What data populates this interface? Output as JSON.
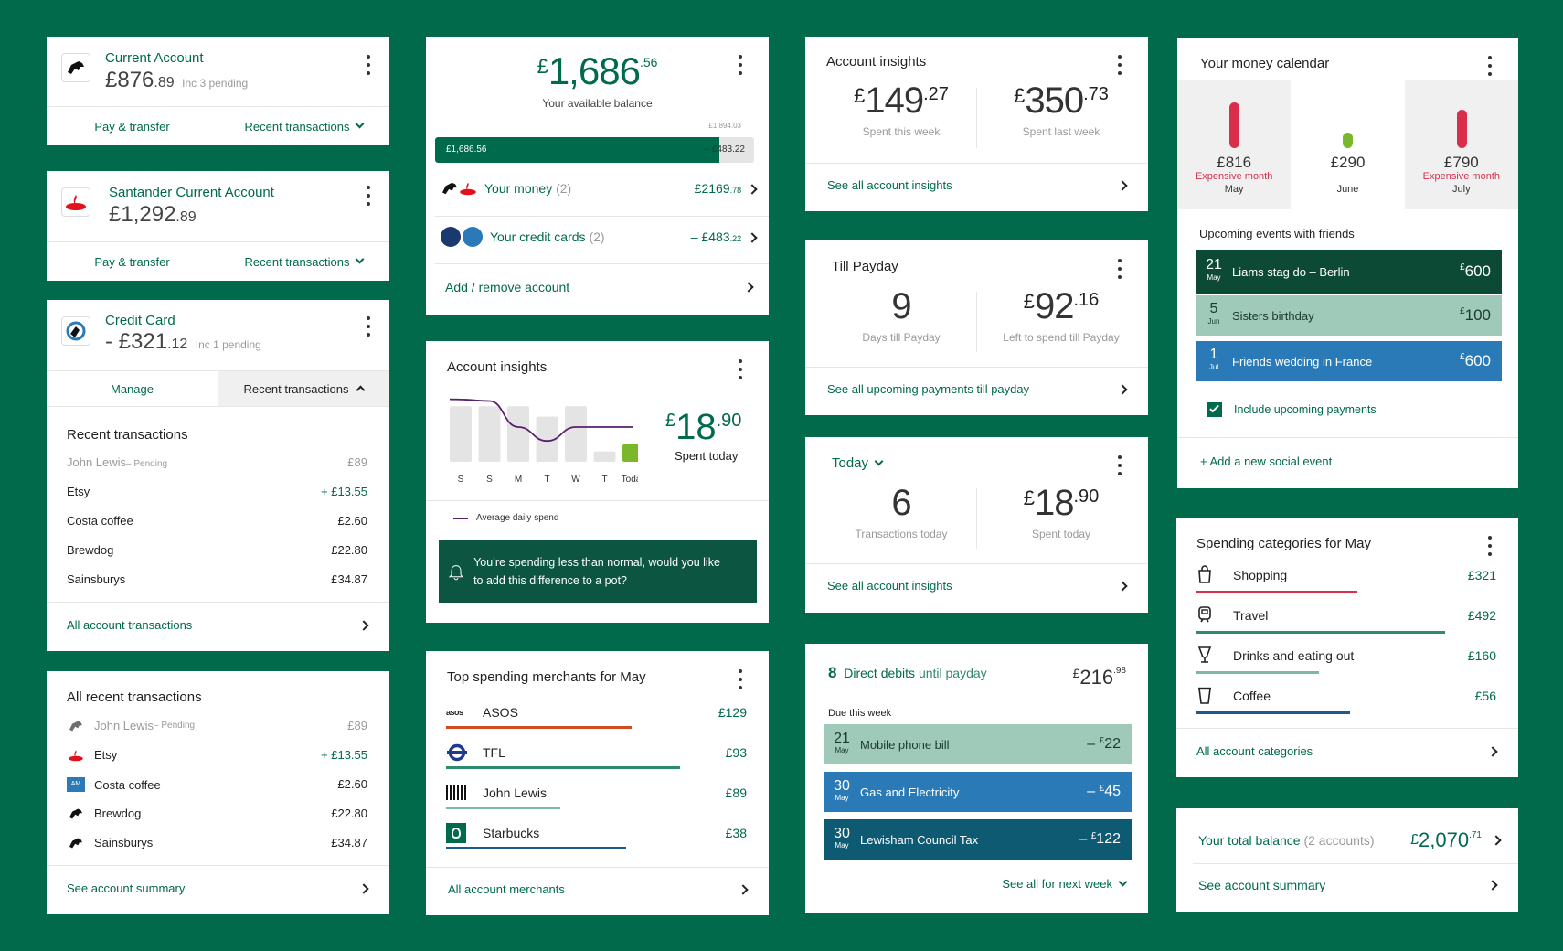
{
  "colors": {
    "bg": "#016a4a",
    "green": "#006a4d",
    "red": "#d92e4c",
    "lightgreen": "#7ab82b"
  },
  "current": {
    "title": "Current Account",
    "cur": "£",
    "amount": "876",
    "pence": ".89",
    "pending": "Inc 3 pending",
    "btn1": "Pay & transfer",
    "btn2": "Recent transactions"
  },
  "santander": {
    "title": "Santander Current Account",
    "cur": "£",
    "amount": "1,292",
    "pence": ".89",
    "btn1": "Pay & transfer",
    "btn2": "Recent transactions"
  },
  "credit": {
    "title": "Credit Card",
    "cur": "- £",
    "amount": "321",
    "pence": ".12",
    "pending": "Inc 1 pending",
    "btn1": "Manage",
    "btn2": "Recent transactions",
    "heading": "Recent transactions",
    "pending_row": {
      "name": "John Lewis",
      "tag": "– Pending",
      "amount": "£89"
    },
    "rows": [
      {
        "name": "Etsy",
        "amount": "+ £13.55"
      },
      {
        "name": "Costa coffee",
        "amount": "£2.60"
      },
      {
        "name": "Brewdog",
        "amount": "£22.80"
      },
      {
        "name": "Sainsburys",
        "amount": "£34.87"
      }
    ],
    "link": "All account transactions"
  },
  "allrecent": {
    "heading": "All recent transactions",
    "pending_row": {
      "name": "John Lewis",
      "tag": "– Pending",
      "amount": "£89"
    },
    "rows": [
      {
        "name": "Etsy",
        "amount": "+ £13.55"
      },
      {
        "name": "Costa coffee",
        "amount": "£2.60"
      },
      {
        "name": "Brewdog",
        "amount": "£22.80"
      },
      {
        "name": "Sainsburys",
        "amount": "£34.87"
      }
    ],
    "link": "See account summary"
  },
  "balance": {
    "cur": "£",
    "amount": "1,686",
    "pence": ".56",
    "label": "Your available balance",
    "limit": "£1,894.03",
    "bar_left": "£1,686.56",
    "bar_right": "– £483.22",
    "bar_fill": 0.89,
    "money_label": "Your money",
    "money_count": "(2)",
    "money_amount": "£2169",
    "money_pence": ".78",
    "cards_label": "Your credit cards",
    "cards_count": "(2)",
    "cards_amount": "– £483",
    "cards_pence": ".22",
    "add": "Add / remove account"
  },
  "insights_chart": {
    "title": "Account insights",
    "cur": "£",
    "amount": "18",
    "pence": ".90",
    "sub": "Spent today",
    "legend": "Average daily spend",
    "alert": "You’re spending less than normal, would you like to add this difference to a pot?"
  },
  "chart_data": {
    "type": "bar",
    "title": "Account insights",
    "categories": [
      "S",
      "S",
      "M",
      "T",
      "W",
      "T",
      "Today"
    ],
    "values": [
      32,
      32,
      32,
      26,
      32,
      6,
      10
    ],
    "ylim": [
      0,
      40
    ],
    "series": [
      {
        "name": "Average daily spend",
        "type": "line",
        "values": [
          36,
          35,
          20,
          12,
          20,
          20,
          20
        ]
      }
    ]
  },
  "merchants": {
    "title": "Top spending merchants for May",
    "rows": [
      {
        "name": "ASOS",
        "logo": "asos",
        "amount": "£129",
        "fill": 0.62,
        "color": "#d24a1f"
      },
      {
        "name": "TFL",
        "logo": "",
        "amount": "£93",
        "fill": 0.78,
        "color": "#2c8c6e"
      },
      {
        "name": "John Lewis",
        "logo": "",
        "amount": "£89",
        "fill": 0.38,
        "color": "#7ab8a4"
      },
      {
        "name": "Starbucks",
        "logo": "",
        "amount": "£38",
        "fill": 0.6,
        "color": "#1d5a8c"
      }
    ],
    "link": "All account merchants"
  },
  "insights_week": {
    "title": "Account insights",
    "a_cur": "£",
    "a_amount": "149",
    "a_pence": ".27",
    "a_label": "Spent this week",
    "b_cur": "£",
    "b_amount": "350",
    "b_pence": ".73",
    "b_label": "Spent last week",
    "link": "See all account insights"
  },
  "payday": {
    "title": "Till Payday",
    "days": "9",
    "days_label": "Days till Payday",
    "cur": "£",
    "amount": "92",
    "pence": ".16",
    "amount_label": "Left to spend till Payday",
    "link": "See all upcoming payments till payday"
  },
  "today": {
    "title": "Today",
    "count": "6",
    "count_label": "Transactions today",
    "cur": "£",
    "amount": "18",
    "pence": ".90",
    "amount_label": "Spent today",
    "link": "See all account insights"
  },
  "dd": {
    "count": "8",
    "label": "Direct debits",
    "suffix": "until payday",
    "cur": "£",
    "amount": "216",
    "pence": ".98",
    "due": "Due this week",
    "rows": [
      {
        "day": "21",
        "mon": "May",
        "name": "Mobile phone bill",
        "cur": "£",
        "amount": "22",
        "color": "#9fc9b8",
        "textdark": true
      },
      {
        "day": "30",
        "mon": "May",
        "name": "Gas and Electricity",
        "cur": "£",
        "amount": "45",
        "color": "#2a7ab8",
        "textdark": false
      },
      {
        "day": "30",
        "mon": "May",
        "name": "Lewisham Council Tax",
        "cur": "£",
        "amount": "122",
        "color": "#0e5a73",
        "textdark": false
      }
    ],
    "link": "See all for next week"
  },
  "calendar": {
    "title": "Your money calendar",
    "months": [
      {
        "amount": "£816",
        "tag": "Expensive month",
        "month": "May",
        "level": 0.9,
        "color": "#d92e4c"
      },
      {
        "amount": "£290",
        "tag": "",
        "month": "June",
        "level": 0.3,
        "color": "#7ab82b"
      },
      {
        "amount": "£790",
        "tag": "Expensive month",
        "month": "July",
        "level": 0.75,
        "color": "#d92e4c"
      }
    ],
    "events_title": "Upcoming events with friends",
    "events": [
      {
        "day": "21",
        "mon": "May",
        "name": "Liams stag do – Berlin",
        "cur": "£",
        "amount": "600",
        "color": "#0d4a36"
      },
      {
        "day": "5",
        "mon": "Jun",
        "name": "Sisters birthday",
        "cur": "£",
        "amount": "100",
        "color": "#9fc9b8"
      },
      {
        "day": "1",
        "mon": "Jul",
        "name": "Friends wedding in France",
        "cur": "£",
        "amount": "600",
        "color": "#2a7ab8"
      }
    ],
    "include": "Include upcoming payments",
    "add": "+ Add a new social event"
  },
  "categories": {
    "title": "Spending categories for May",
    "rows": [
      {
        "name": "Shopping",
        "amount": "£321",
        "fill": 0.63,
        "color": "#d92e4c"
      },
      {
        "name": "Travel",
        "amount": "£492",
        "fill": 0.97,
        "color": "#2c8c6e"
      },
      {
        "name": "Drinks and eating out",
        "amount": "£160",
        "fill": 0.48,
        "color": "#7ab8a4"
      },
      {
        "name": "Coffee",
        "amount": "£56",
        "fill": 0.6,
        "color": "#1d5a8c"
      }
    ],
    "link": "All account categories"
  },
  "total": {
    "label": "Your total balance",
    "count": "(2 accounts)",
    "cur": "£",
    "amount": "2,070",
    "pence": ".71",
    "link": "See account summary"
  }
}
